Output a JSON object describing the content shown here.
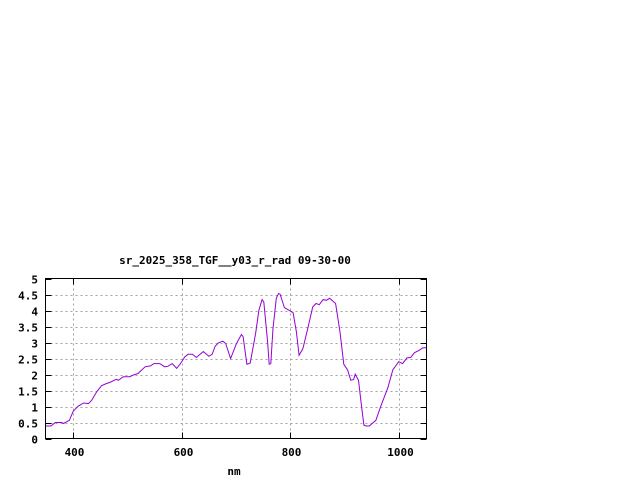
{
  "chart_data": {
    "type": "line",
    "title": "sr_2025_358_TGF__y03_r_rad 09-30-00",
    "xlabel": "nm",
    "ylabel": "",
    "xlim": [
      350,
      1050
    ],
    "ylim": [
      0,
      5
    ],
    "xticks": [
      400,
      600,
      800,
      1000
    ],
    "xtick_labels": [
      "400",
      "600",
      "800",
      "1000"
    ],
    "yticks": [
      0,
      0.5,
      1,
      1.5,
      2,
      2.5,
      3,
      3.5,
      4,
      4.5,
      5
    ],
    "ytick_labels": [
      "0",
      "0.5",
      "1",
      "1.5",
      "2",
      "2.5",
      "3",
      "3.5",
      "4",
      "4.5",
      "5"
    ],
    "grid": true,
    "legend": "none",
    "line_color": "#9400d3",
    "series": [
      {
        "x": [
          350,
          360,
          368,
          380,
          383,
          394,
          401,
          410,
          420,
          429,
          435,
          444,
          453,
          462,
          468,
          480,
          484,
          493,
          505,
          511,
          520,
          533,
          543,
          549,
          560,
          569,
          575,
          583,
          591,
          598,
          606,
          612,
          620,
          627,
          640,
          650,
          656,
          662,
          668,
          676,
          681,
          690,
          701,
          710,
          713,
          720,
          726,
          736,
          742,
          748,
          751,
          758,
          761,
          764,
          768,
          774,
          778,
          781,
          789,
          797,
          805,
          811,
          816,
          823,
          832,
          841,
          847,
          853,
          860,
          866,
          872,
          883,
          891,
          898,
          905,
          911,
          916,
          919,
          925,
          930,
          935,
          939,
          945,
          957,
          966,
          979,
          988,
          999,
          1006,
          1014,
          1021,
          1028,
          1037,
          1043,
          1050
        ],
        "y": [
          0.39,
          0.39,
          0.5,
          0.5,
          0.47,
          0.57,
          0.86,
          1.01,
          1.11,
          1.09,
          1.2,
          1.46,
          1.65,
          1.72,
          1.75,
          1.85,
          1.82,
          1.93,
          1.93,
          1.98,
          2.03,
          2.24,
          2.27,
          2.34,
          2.34,
          2.24,
          2.26,
          2.34,
          2.19,
          2.34,
          2.55,
          2.63,
          2.63,
          2.53,
          2.72,
          2.57,
          2.63,
          2.89,
          2.99,
          3.04,
          2.97,
          2.5,
          2.97,
          3.25,
          3.18,
          2.32,
          2.36,
          3.28,
          4.01,
          4.34,
          4.27,
          3.02,
          2.32,
          2.34,
          3.44,
          4.38,
          4.53,
          4.51,
          4.09,
          4.01,
          3.93,
          3.33,
          2.6,
          2.81,
          3.44,
          4.11,
          4.22,
          4.18,
          4.34,
          4.32,
          4.38,
          4.22,
          3.33,
          2.32,
          2.14,
          1.82,
          1.84,
          2.01,
          1.82,
          1.09,
          0.42,
          0.39,
          0.39,
          0.57,
          1.01,
          1.59,
          2.14,
          2.4,
          2.34,
          2.52,
          2.53,
          2.68,
          2.76,
          2.83,
          2.84
        ]
      }
    ]
  }
}
